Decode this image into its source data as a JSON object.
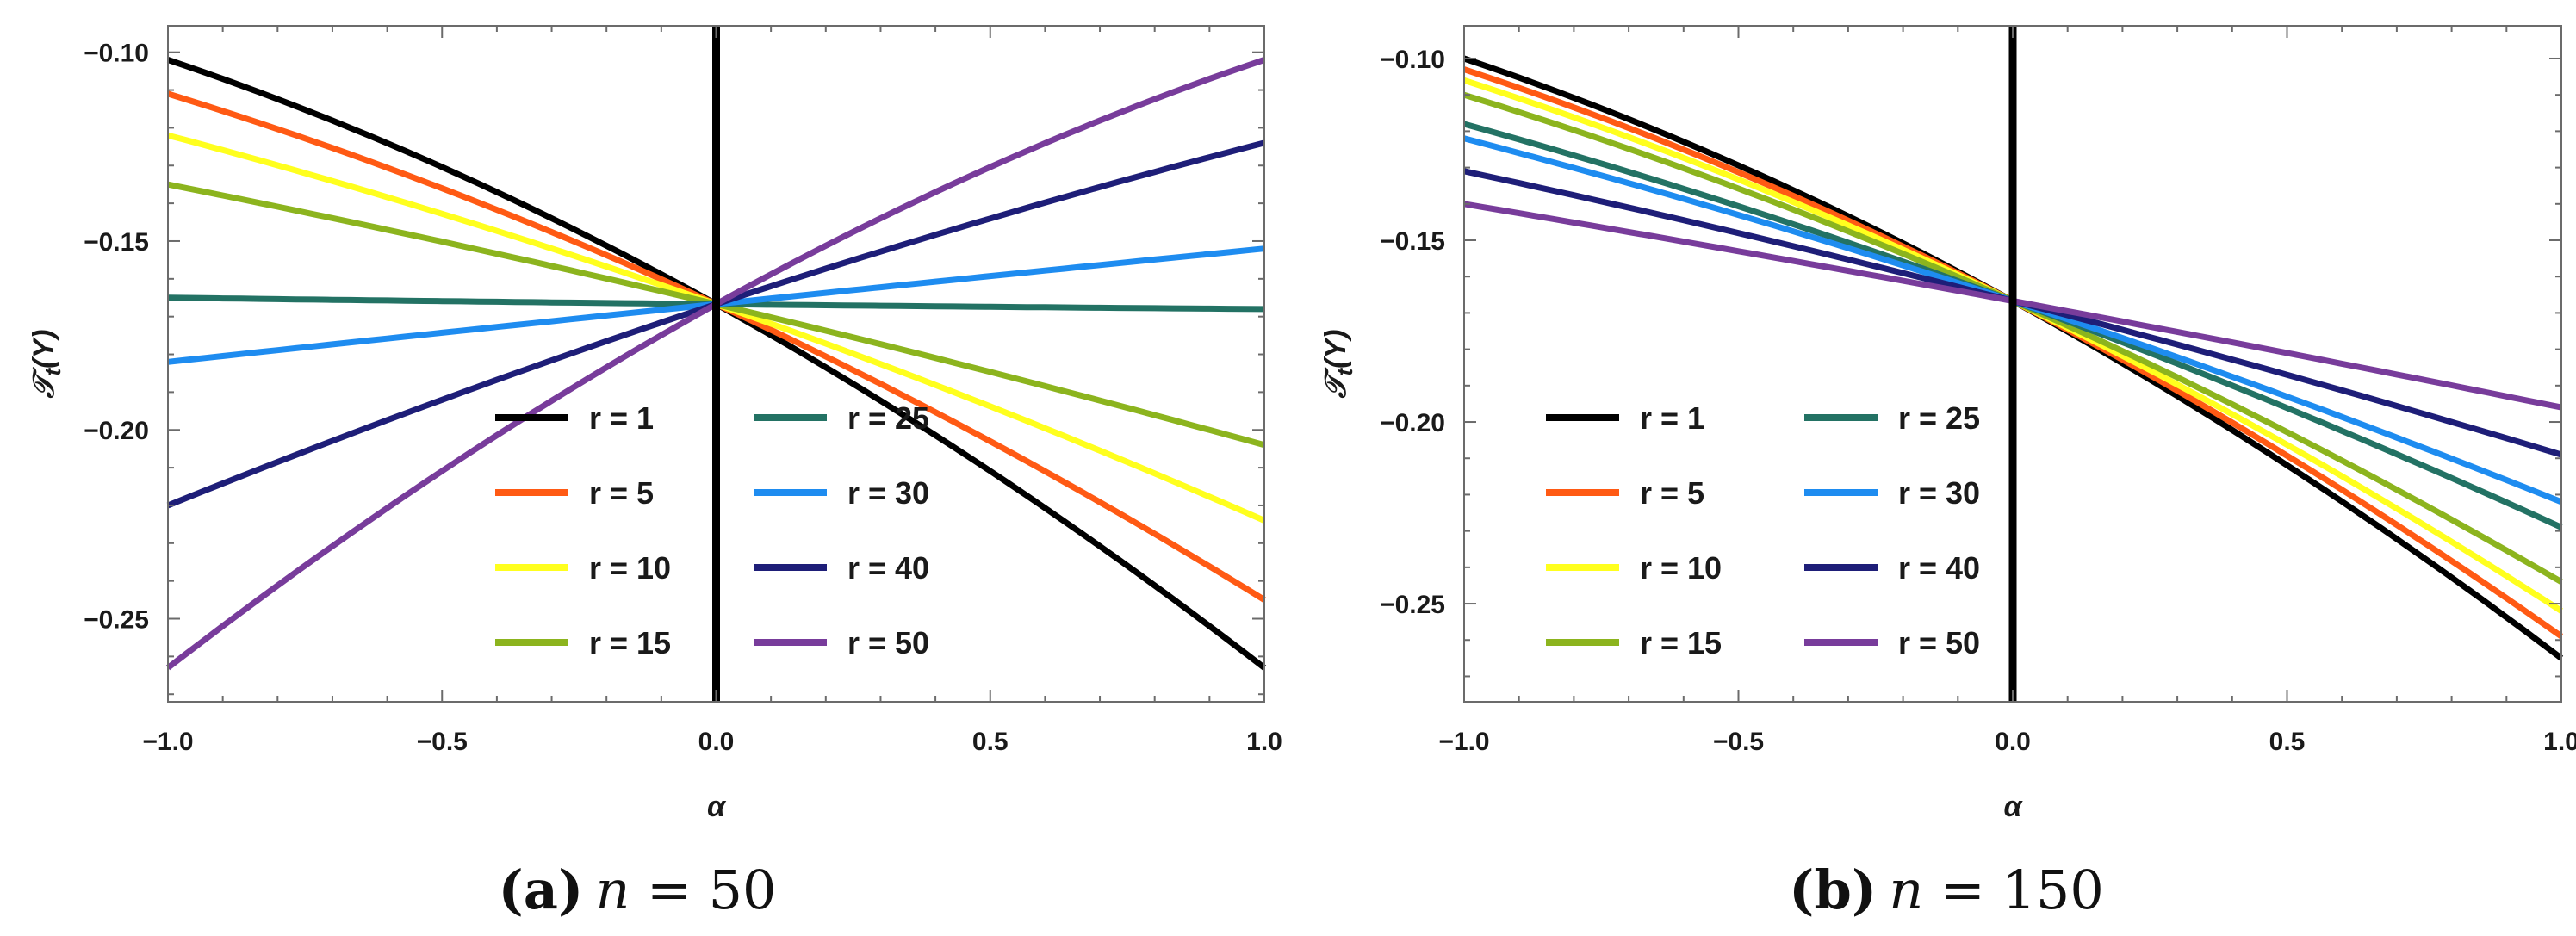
{
  "chart_data": [
    {
      "type": "line",
      "caption_label": "(a)",
      "caption_var": "n",
      "caption_eq": " = 50",
      "xlabel": "α",
      "ylabel_main": "𝒯",
      "ylabel_sub": "t",
      "ylabel_arg": "(Y)",
      "xlim": [
        -1.0,
        1.0
      ],
      "ylim": [
        -0.272,
        -0.093
      ],
      "xticks": [
        -1.0,
        -0.5,
        0.0,
        0.5,
        1.0
      ],
      "xtick_labels": [
        "−1.0",
        "−0.5",
        "0.0",
        "0.5",
        "1.0"
      ],
      "yticks": [
        -0.25,
        -0.2,
        -0.15,
        -0.1
      ],
      "ytick_labels": [
        "−0.25",
        "−0.20",
        "−0.15",
        "−0.10"
      ],
      "vline_x": 0.0,
      "legend_position": "lower-center",
      "series": [
        {
          "name": "r = 1",
          "color": "#000000",
          "x": [
            -1,
            0,
            1
          ],
          "y": [
            -0.102,
            -0.1667,
            -0.263
          ],
          "curvature": -0.011
        },
        {
          "name": "r = 5",
          "color": "#ff5a14",
          "x": [
            -1,
            0,
            1
          ],
          "y": [
            -0.111,
            -0.1667,
            -0.245
          ],
          "curvature": -0.008
        },
        {
          "name": "r = 10",
          "color": "#ffff1e",
          "x": [
            -1,
            0,
            1
          ],
          "y": [
            -0.122,
            -0.1667,
            -0.224
          ],
          "curvature": -0.004
        },
        {
          "name": "r = 15",
          "color": "#8cb41e",
          "x": [
            -1,
            0,
            1
          ],
          "y": [
            -0.135,
            -0.1667,
            -0.204
          ],
          "curvature": -0.002
        },
        {
          "name": "r = 25",
          "color": "#237264",
          "x": [
            -1,
            0,
            1
          ],
          "y": [
            -0.165,
            -0.1667,
            -0.168
          ],
          "curvature": 0.0
        },
        {
          "name": "r = 30",
          "color": "#1e8cf0",
          "x": [
            -1,
            0,
            1
          ],
          "y": [
            -0.182,
            -0.1667,
            -0.152
          ],
          "curvature": 0.0
        },
        {
          "name": "r = 40",
          "color": "#1e1e78",
          "x": [
            -1,
            0,
            1
          ],
          "y": [
            -0.22,
            -0.1667,
            -0.124
          ],
          "curvature": 0.004
        },
        {
          "name": "r = 50",
          "color": "#783c9b",
          "x": [
            -1,
            0,
            1
          ],
          "y": [
            -0.263,
            -0.1667,
            -0.102
          ],
          "curvature": 0.011
        }
      ]
    },
    {
      "type": "line",
      "caption_label": "(b)",
      "caption_var": "n",
      "caption_eq": " = 150",
      "xlabel": "α",
      "ylabel_main": "𝒯",
      "ylabel_sub": "t",
      "ylabel_arg": "(Y)",
      "xlim": [
        -1.0,
        1.0
      ],
      "ylim": [
        -0.277,
        -0.091
      ],
      "xticks": [
        -1.0,
        -0.5,
        0.0,
        0.5,
        1.0
      ],
      "xtick_labels": [
        "−1.0",
        "−0.5",
        "0.0",
        "0.5",
        "1.0"
      ],
      "yticks": [
        -0.25,
        -0.2,
        -0.15,
        -0.1
      ],
      "ytick_labels": [
        "−0.25",
        "−0.20",
        "−0.15",
        "−0.10"
      ],
      "vline_x": 0.0,
      "legend_position": "lower-left",
      "series": [
        {
          "name": "r = 1",
          "color": "#000000",
          "x": [
            -1,
            0,
            1
          ],
          "y": [
            -0.1,
            -0.1667,
            -0.265
          ],
          "curvature": -0.012
        },
        {
          "name": "r = 5",
          "color": "#ff5a14",
          "x": [
            -1,
            0,
            1
          ],
          "y": [
            -0.103,
            -0.1667,
            -0.259
          ],
          "curvature": -0.011
        },
        {
          "name": "r = 10",
          "color": "#ffff1e",
          "x": [
            -1,
            0,
            1
          ],
          "y": [
            -0.106,
            -0.1667,
            -0.252
          ],
          "curvature": -0.01
        },
        {
          "name": "r = 15",
          "color": "#8cb41e",
          "x": [
            -1,
            0,
            1
          ],
          "y": [
            -0.11,
            -0.1667,
            -0.244
          ],
          "curvature": -0.009
        },
        {
          "name": "r = 25",
          "color": "#237264",
          "x": [
            -1,
            0,
            1
          ],
          "y": [
            -0.118,
            -0.1667,
            -0.229
          ],
          "curvature": -0.007
        },
        {
          "name": "r = 30",
          "color": "#1e8cf0",
          "x": [
            -1,
            0,
            1
          ],
          "y": [
            -0.122,
            -0.1667,
            -0.222
          ],
          "curvature": -0.006
        },
        {
          "name": "r = 40",
          "color": "#1e1e78",
          "x": [
            -1,
            0,
            1
          ],
          "y": [
            -0.131,
            -0.1667,
            -0.209
          ],
          "curvature": -0.004
        },
        {
          "name": "r = 50",
          "color": "#783c9b",
          "x": [
            -1,
            0,
            1
          ],
          "y": [
            -0.14,
            -0.1667,
            -0.196
          ],
          "curvature": -0.002
        }
      ]
    }
  ]
}
